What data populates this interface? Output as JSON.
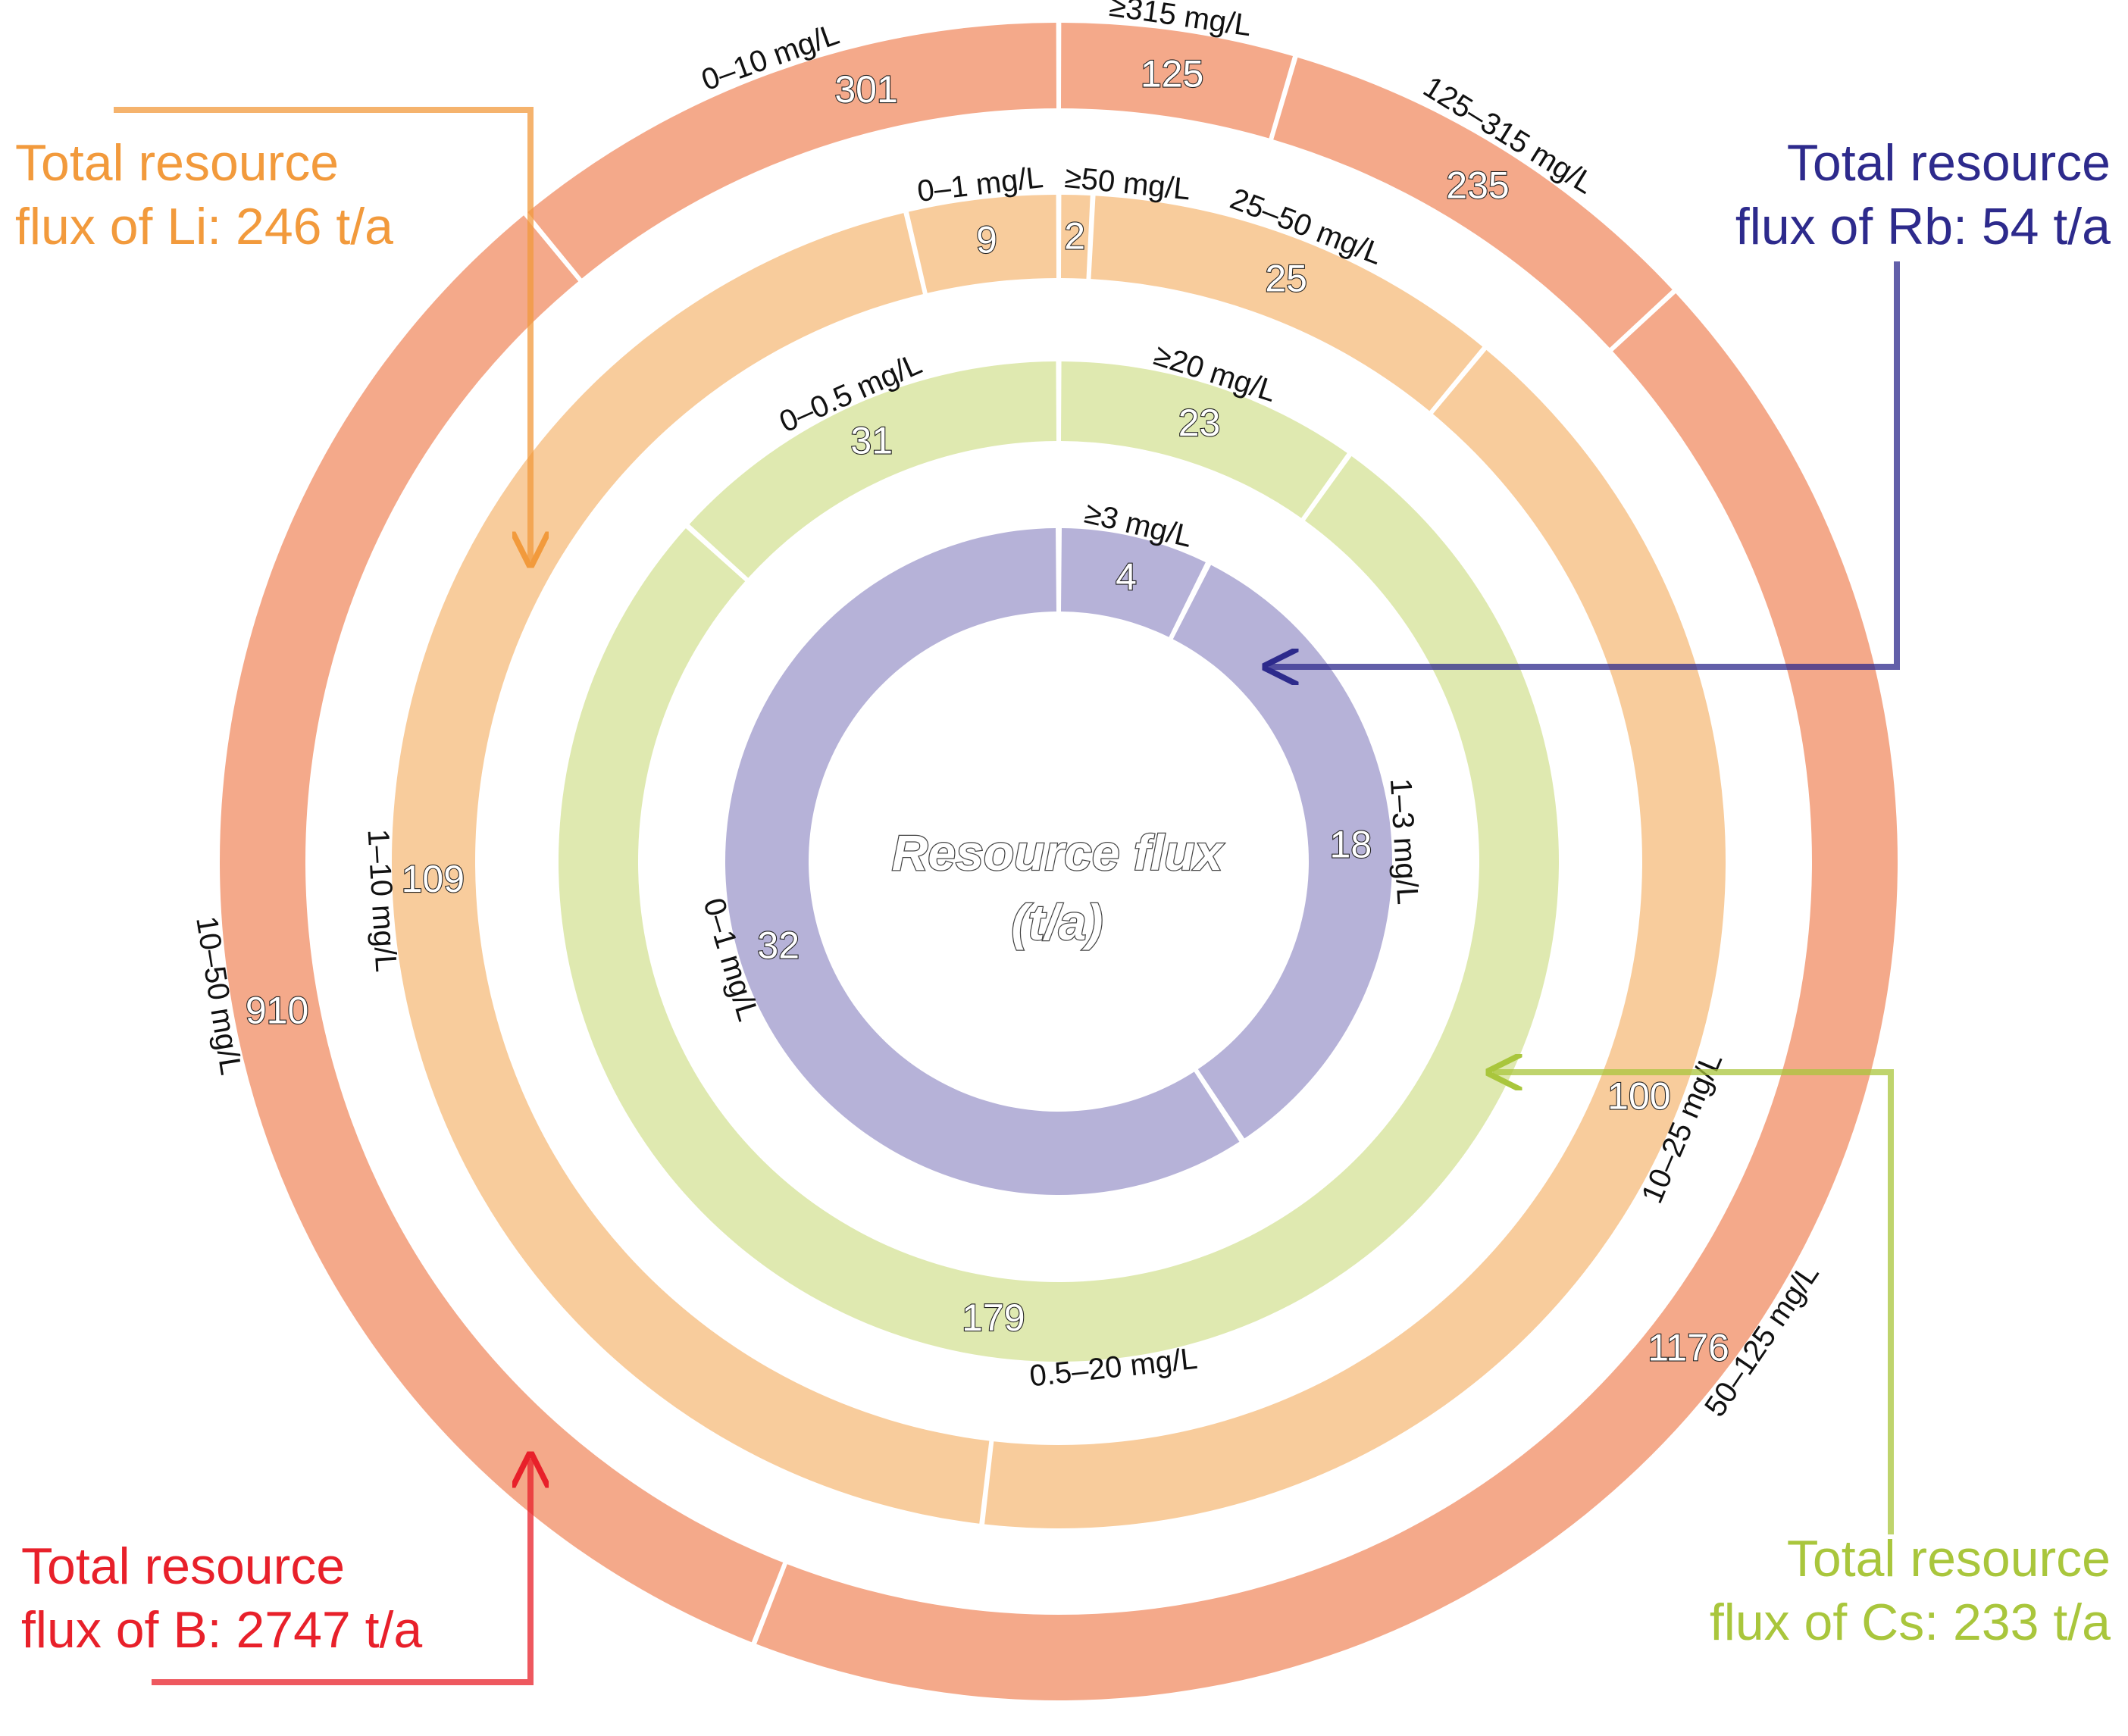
{
  "chart_data": {
    "type": "pie",
    "subtype": "concentric-donut",
    "center_title": [
      "Resource flux",
      "(t/a)"
    ],
    "value_unit": "t/a",
    "rings": [
      {
        "element": "B",
        "color": "#f4a98a",
        "segments": [
          {
            "label": "≥315 mg/L",
            "value": 125
          },
          {
            "label": "125–315 mg/L",
            "value": 235
          },
          {
            "label": "50–125 mg/L",
            "value": 1176
          },
          {
            "label": "10–50 mg/L",
            "value": 910
          },
          {
            "label": "0–10 mg/L",
            "value": 301
          }
        ]
      },
      {
        "element": "Li",
        "color": "#f8cc9c",
        "segments": [
          {
            "label": "≥50 mg/L",
            "value": 2
          },
          {
            "label": "25–50 mg/L",
            "value": 25
          },
          {
            "label": "10–25 mg/L",
            "value": 100
          },
          {
            "label": "1–10 mg/L",
            "value": 109
          },
          {
            "label": "0–1 mg/L",
            "value": 9
          }
        ]
      },
      {
        "element": "Cs",
        "color": "#dfe9b0",
        "segments": [
          {
            "label": "≥20 mg/L",
            "value": 23
          },
          {
            "label": "0.5–20 mg/L",
            "value": 179
          },
          {
            "label": "0–0.5 mg/L",
            "value": 31
          }
        ]
      },
      {
        "element": "Rb",
        "color": "#b6b2d8",
        "segments": [
          {
            "label": "≥3 mg/L",
            "value": 4
          },
          {
            "label": "1–3 mg/L",
            "value": 18
          },
          {
            "label": "0–1 mg/L",
            "value": 32
          }
        ]
      }
    ],
    "annotations": [
      {
        "element": "Li",
        "lines": [
          "Total resource",
          "flux of Li: 246 t/a"
        ],
        "color": "#f29a3c"
      },
      {
        "element": "Rb",
        "lines": [
          "Total resource",
          "flux of Rb: 54 t/a"
        ],
        "color": "#2d2a8c"
      },
      {
        "element": "B",
        "lines": [
          "Total resource",
          "flux of B: 2747 t/a"
        ],
        "color": "#e8202a"
      },
      {
        "element": "Cs",
        "lines": [
          "Total resource",
          "flux of Cs: 233 t/a"
        ],
        "color": "#a9c63c"
      }
    ]
  }
}
